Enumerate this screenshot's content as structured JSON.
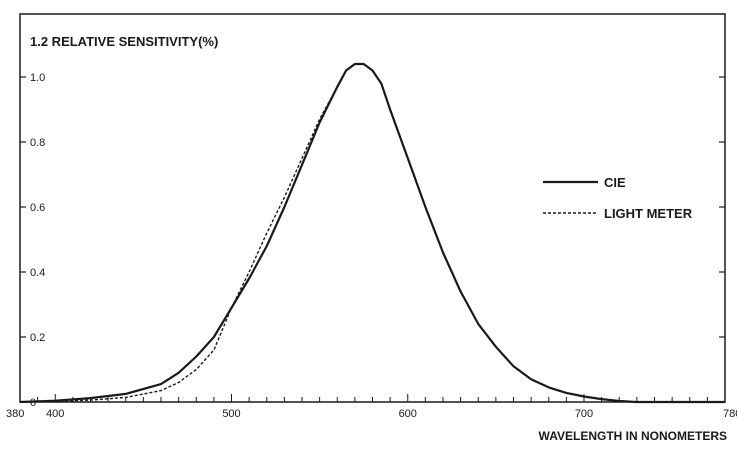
{
  "chart_data": {
    "type": "line",
    "title": "1.2 RELATIVE SENSITIVITY(%)",
    "xlabel": "WAVELENGTH IN NONOMETERS",
    "ylabel": "",
    "xlim": [
      380,
      780
    ],
    "ylim": [
      0,
      1.2
    ],
    "x_ticks": [
      380,
      400,
      500,
      600,
      700,
      780
    ],
    "x_tick_labels": [
      "380",
      "400",
      "500",
      "600",
      "700",
      "780"
    ],
    "y_ticks": [
      0,
      0.2,
      0.4,
      0.6,
      0.8,
      1.0
    ],
    "y_tick_labels": [
      "0",
      "0.2",
      "0.4",
      "0.6",
      "0.8",
      "1.0"
    ],
    "legend_position": "right",
    "grid": false,
    "series": [
      {
        "name": "CIE",
        "style": "solid",
        "color": "#1a1a1a",
        "points": [
          [
            380,
            0.0
          ],
          [
            400,
            0.004
          ],
          [
            420,
            0.012
          ],
          [
            440,
            0.025
          ],
          [
            460,
            0.055
          ],
          [
            470,
            0.09
          ],
          [
            480,
            0.14
          ],
          [
            490,
            0.2
          ],
          [
            500,
            0.29
          ],
          [
            510,
            0.38
          ],
          [
            520,
            0.48
          ],
          [
            530,
            0.6
          ],
          [
            540,
            0.73
          ],
          [
            550,
            0.86
          ],
          [
            560,
            0.97
          ],
          [
            565,
            1.02
          ],
          [
            570,
            1.04
          ],
          [
            575,
            1.04
          ],
          [
            580,
            1.02
          ],
          [
            585,
            0.98
          ],
          [
            590,
            0.9
          ],
          [
            600,
            0.75
          ],
          [
            610,
            0.6
          ],
          [
            620,
            0.46
          ],
          [
            630,
            0.34
          ],
          [
            640,
            0.24
          ],
          [
            650,
            0.17
          ],
          [
            660,
            0.11
          ],
          [
            670,
            0.07
          ],
          [
            680,
            0.045
          ],
          [
            690,
            0.028
          ],
          [
            700,
            0.017
          ],
          [
            710,
            0.009
          ],
          [
            720,
            0.003
          ],
          [
            730,
            0.0
          ],
          [
            780,
            0.0
          ]
        ]
      },
      {
        "name": "LIGHT METER",
        "style": "dashed",
        "color": "#1a1a1a",
        "points": [
          [
            380,
            0.0
          ],
          [
            400,
            0.002
          ],
          [
            420,
            0.006
          ],
          [
            440,
            0.014
          ],
          [
            460,
            0.035
          ],
          [
            470,
            0.06
          ],
          [
            480,
            0.1
          ],
          [
            490,
            0.16
          ],
          [
            500,
            0.29
          ],
          [
            510,
            0.4
          ],
          [
            520,
            0.52
          ],
          [
            530,
            0.63
          ],
          [
            540,
            0.75
          ],
          [
            550,
            0.87
          ],
          [
            560,
            0.97
          ],
          [
            565,
            1.02
          ],
          [
            570,
            1.04
          ],
          [
            575,
            1.04
          ],
          [
            580,
            1.02
          ],
          [
            585,
            0.98
          ],
          [
            590,
            0.9
          ],
          [
            600,
            0.75
          ],
          [
            610,
            0.6
          ],
          [
            620,
            0.46
          ],
          [
            630,
            0.34
          ],
          [
            640,
            0.24
          ],
          [
            650,
            0.17
          ],
          [
            660,
            0.11
          ],
          [
            670,
            0.07
          ],
          [
            680,
            0.045
          ],
          [
            690,
            0.028
          ],
          [
            700,
            0.017
          ],
          [
            710,
            0.009
          ],
          [
            720,
            0.003
          ],
          [
            730,
            0.0
          ],
          [
            780,
            0.0
          ]
        ]
      }
    ]
  }
}
